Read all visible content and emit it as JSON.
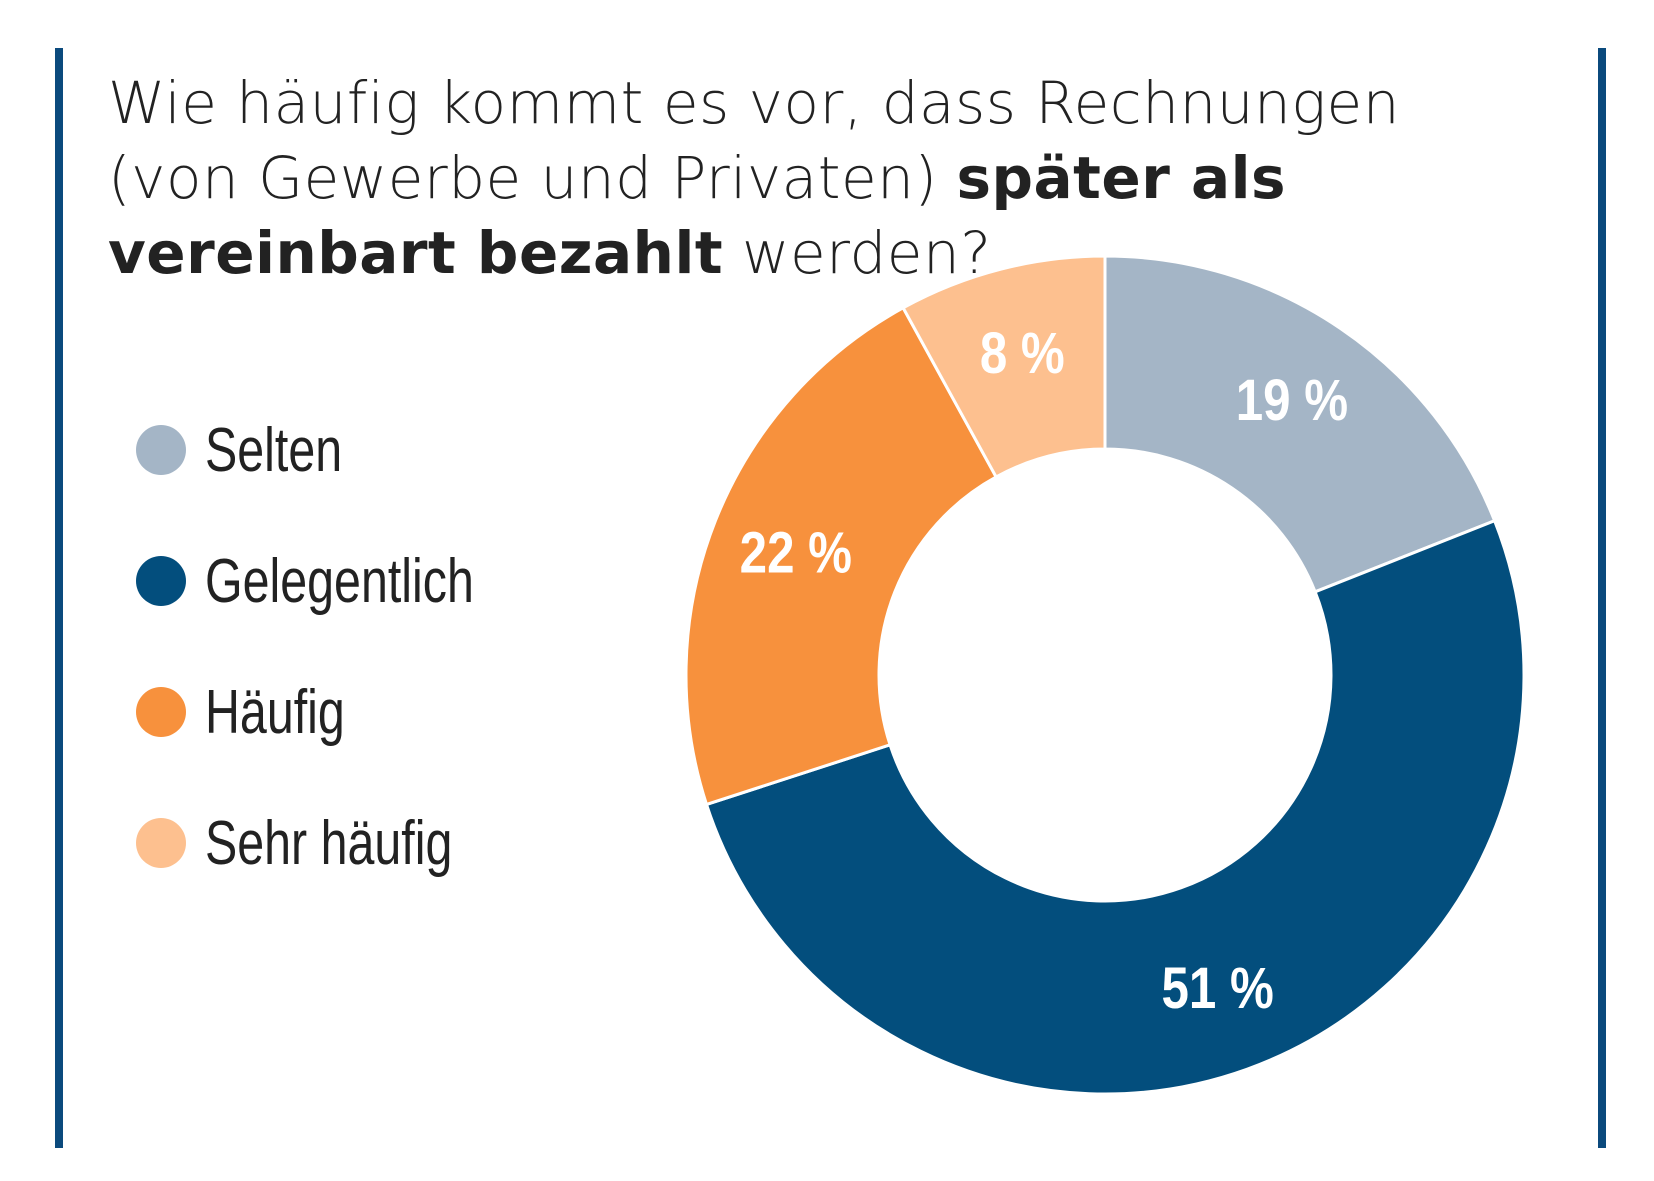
{
  "chart_data": {
    "type": "pie",
    "donut": true,
    "title_parts": [
      {
        "text": "Wie häufig kommt es vor, dass Rechnungen (von Gewerbe und Privaten) ",
        "bold": false
      },
      {
        "text": "später als vereinbart bezahlt",
        "bold": true
      },
      {
        "text": " werden?",
        "bold": false
      }
    ],
    "legend_placement": "left",
    "categories": [
      "Selten",
      "Gelegentlich",
      "Häufig",
      "Sehr häufig"
    ],
    "values": [
      19,
      51,
      22,
      8
    ],
    "data_labels": [
      "19 %",
      "51 %",
      "22 %",
      "8 %"
    ],
    "colors": [
      "#a4b5c6",
      "#034e7d",
      "#f7913d",
      "#fdc08f"
    ]
  },
  "frame_color": "#0b4a7d"
}
